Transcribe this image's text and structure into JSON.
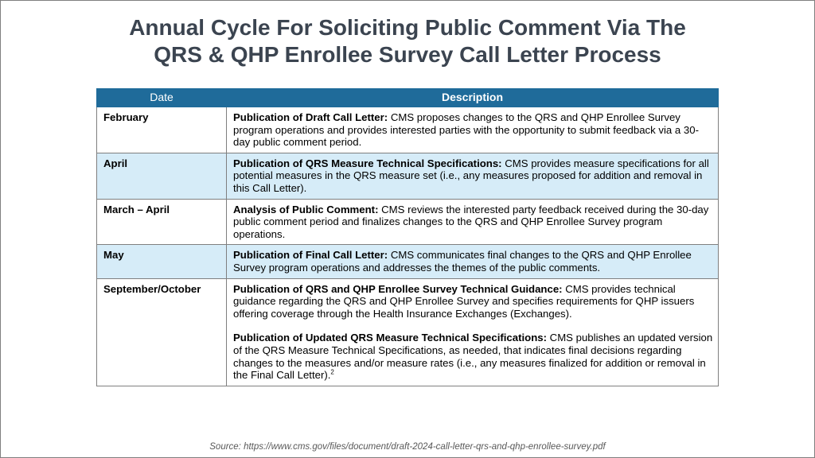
{
  "title": {
    "line1": "Annual Cycle For Soliciting Public Comment Via The",
    "line2": "QRS & QHP Enrollee Survey Call Letter Process"
  },
  "table": {
    "headers": {
      "date": "Date",
      "description": "Description"
    },
    "rows": [
      {
        "date": "February",
        "lead": "Publication of Draft Call Letter:",
        "text": " CMS proposes changes to the QRS and QHP Enrollee Survey program operations and provides interested parties with the opportunity to submit feedback via a 30-day public comment period."
      },
      {
        "date": "April",
        "lead": "Publication of QRS Measure Technical Specifications:",
        "text": " CMS provides measure specifications for all potential measures in the QRS measure set (i.e., any measures proposed for addition and removal in this Call Letter)."
      },
      {
        "date": "March – April",
        "lead": "Analysis of Public Comment:",
        "text": " CMS reviews the interested party feedback received during the 30-day public comment period and finalizes changes to the QRS and QHP Enrollee Survey program operations."
      },
      {
        "date": "May",
        "lead": "Publication of Final Call Letter:",
        "text": " CMS communicates final changes to the QRS and QHP Enrollee Survey program operations and addresses the themes of the public comments."
      },
      {
        "date": "September/October",
        "lead": "Publication of QRS and QHP Enrollee Survey Technical Guidance:",
        "text": " CMS provides technical guidance regarding the QRS and QHP Enrollee Survey and specifies requirements for QHP issuers offering coverage through the Health Insurance Exchanges (Exchanges).",
        "lead2": "Publication of Updated QRS Measure Technical Specifications:",
        "text2": " CMS publishes an updated version of the QRS Measure Technical Specifications, as needed, that indicates final decisions regarding changes to the measures and/or measure rates (i.e., any measures finalized for addition or removal in the Final Call Letter).",
        "footnote": "2"
      }
    ]
  },
  "source": "Source: https://www.cms.gov/files/document/draft-2024-call-letter-qrs-and-qhp-enrollee-survey.pdf"
}
